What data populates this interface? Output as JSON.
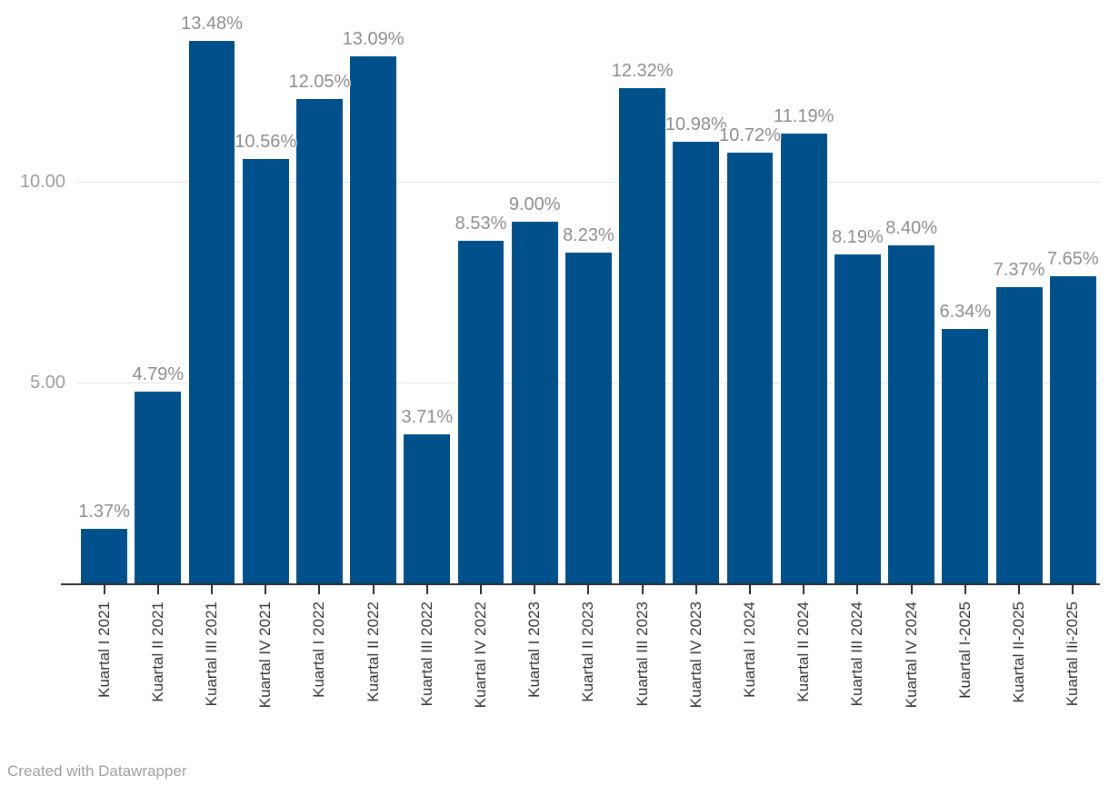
{
  "chart": {
    "footer": "Created with Datawrapper",
    "colors": {
      "bar": "#00508C",
      "grid": "#e4e4e4",
      "axis": "#2e2e2e",
      "value_label": "#8c8c8c",
      "y_tick_label": "#9b9b9b",
      "x_tick_label": "#333333",
      "footer_text": "#9e9e9e",
      "background": "#ffffff"
    }
  },
  "chart_data": {
    "type": "bar",
    "orientation": "vertical",
    "categories": [
      "Kuartal I 2021",
      "Kuartal II 2021",
      "Kuartal III 2021",
      "Kuartal IV 2021",
      "Kuartal I 2022",
      "Kuartal II 2022",
      "Kuartal III 2022",
      "Kuartal IV 2022",
      "Kuartal I 2023",
      "Kuartal II 2023",
      "Kuartal III 2023",
      "Kuartal IV 2023",
      "Kuartal I 2024",
      "Kuartal II 2024",
      "Kuartal III 2024",
      "Kuartal IV 2024",
      "Kuartal I-2025",
      "Kuartal II-2025",
      "Kuartal IIi-2025"
    ],
    "values": [
      1.37,
      4.79,
      13.48,
      10.56,
      12.05,
      13.09,
      3.71,
      8.53,
      9.0,
      8.23,
      12.32,
      10.98,
      10.72,
      11.19,
      8.19,
      8.4,
      6.34,
      7.37,
      7.65
    ],
    "value_labels": [
      "1.37%",
      "4.79%",
      "13.48%",
      "10.56%",
      "12.05%",
      "13.09%",
      "3.71%",
      "8.53%",
      "9.00%",
      "8.23%",
      "12.32%",
      "10.98%",
      "10.72%",
      "11.19%",
      "8.19%",
      "8.40%",
      "6.34%",
      "7.37%",
      "7.65%"
    ],
    "y_ticks": [
      {
        "value": 5,
        "label": "5.00"
      },
      {
        "value": 10,
        "label": "10.00"
      }
    ],
    "ylim": [
      0,
      14.5
    ],
    "xlabel": "",
    "ylabel": "",
    "title": "",
    "grid": "horizontal",
    "legend_position": "none",
    "bar_color": "#00508C"
  }
}
